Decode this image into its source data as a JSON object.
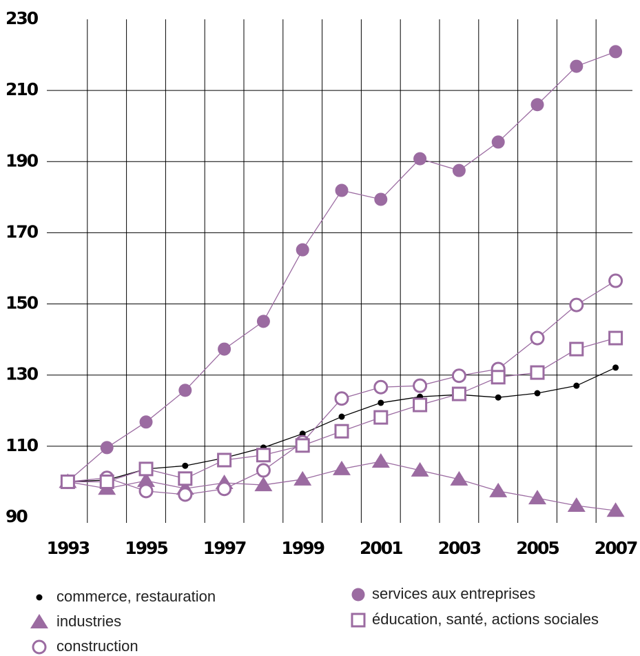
{
  "chart_data": {
    "type": "line",
    "categories": [
      "1993",
      null,
      "1995",
      null,
      "1997",
      null,
      "1999",
      null,
      "2001",
      null,
      "2003",
      null,
      "2005",
      null,
      "2007"
    ],
    "ylim": [
      90,
      230
    ],
    "yticks": [
      90,
      110,
      130,
      150,
      170,
      190,
      210,
      230
    ],
    "grid": true,
    "series": [
      {
        "name": "commerce, restauration",
        "color": "#000000",
        "marker": "dot",
        "values": [
          100,
          100.5,
          103.6,
          104.5,
          106.7,
          109.6,
          113.5,
          118.3,
          122.2,
          123.9,
          124.5,
          123.7,
          124.9,
          127,
          132.1
        ]
      },
      {
        "name": "industries",
        "color": "#9b6ba1",
        "marker": "triangle",
        "values": [
          100,
          98.1,
          100.3,
          98.1,
          99.7,
          99.1,
          100.7,
          103.6,
          105.7,
          103.2,
          100.7,
          97.4,
          95.4,
          93.3,
          91.9
        ]
      },
      {
        "name": "construction",
        "color": "#9b6ba1",
        "marker": "circle-open",
        "values": [
          100,
          101.1,
          97.4,
          96.4,
          98,
          103.2,
          111.1,
          123.4,
          126.6,
          127,
          129.8,
          131.7,
          140.4,
          149.7,
          156.5
        ]
      },
      {
        "name": "services aux entreprises",
        "color": "#9b6ba1",
        "marker": "circle",
        "values": [
          100.1,
          109.6,
          116.8,
          125.7,
          137.3,
          145.1,
          165.2,
          181.9,
          179.4,
          190.8,
          187.5,
          195.5,
          206,
          216.8,
          220.9
        ]
      },
      {
        "name": "éducation, santé, actions sociales",
        "color": "#9b6ba1",
        "marker": "square-open",
        "values": [
          100,
          100,
          103.6,
          100.9,
          106.1,
          107.5,
          110.2,
          114.2,
          118.1,
          121.6,
          124.7,
          129.4,
          130.7,
          137.3,
          140.4
        ]
      }
    ]
  }
}
